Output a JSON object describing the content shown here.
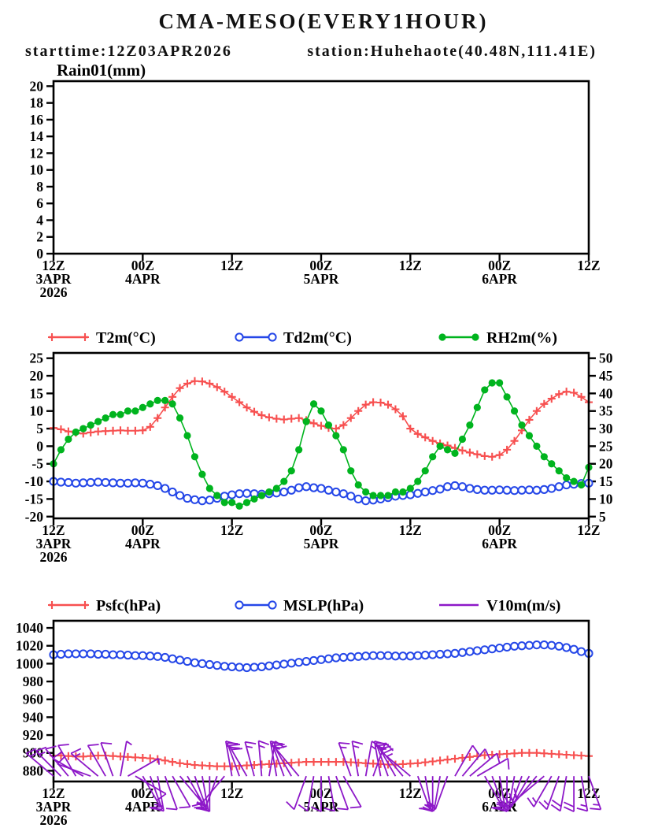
{
  "header": {
    "title": "CMA-MESO(EVERY1HOUR)",
    "subtitle_left": "starttime:12Z03APR2026",
    "subtitle_right": "station:Huhehaote(40.48N,111.41E)"
  },
  "x_axis": {
    "tick_labels": [
      "12Z",
      "00Z",
      "12Z",
      "00Z",
      "12Z",
      "00Z",
      "12Z"
    ],
    "date_rows": [
      [
        "3APR",
        "2026"
      ],
      [
        "4APR"
      ],
      [],
      [
        "5APR"
      ],
      [],
      [
        "6APR"
      ],
      []
    ],
    "start": "12Z 3APR2026",
    "end": "12Z 6APR2026",
    "interval_hours": 1
  },
  "chart_data": [
    {
      "type": "bar",
      "name": "rain-panel",
      "title": "Rain01(mm)",
      "y_axis_left": {
        "lim": [
          0,
          20.6
        ],
        "ticks": [
          0,
          2,
          4,
          6,
          8,
          10,
          12,
          14,
          16,
          18,
          20
        ]
      },
      "series": [
        {
          "name": "Rain01(mm)",
          "color": "#00b41e",
          "marker": "none",
          "axis": "left",
          "draw": "bar",
          "values": [
            0,
            0,
            0,
            0,
            0,
            0,
            0,
            0,
            0,
            0,
            0,
            0,
            0,
            0,
            0,
            0,
            0,
            0,
            0,
            0,
            0,
            0,
            0,
            0,
            0,
            0,
            0,
            0,
            0,
            0,
            0,
            0,
            0,
            0,
            0,
            0,
            0,
            0,
            0,
            0,
            0,
            0,
            0,
            0,
            0,
            0,
            0,
            0,
            0,
            0,
            0,
            0,
            0,
            0,
            0,
            0,
            0,
            0,
            0,
            0,
            0,
            0,
            0,
            0,
            0,
            0,
            0,
            0,
            0,
            0,
            0,
            0,
            0
          ]
        }
      ]
    },
    {
      "type": "line",
      "name": "temperature-humidity-panel",
      "y_axis_left": {
        "lim": [
          -20.5,
          26.5
        ],
        "ticks": [
          -20,
          -15,
          -10,
          -5,
          0,
          5,
          10,
          15,
          20,
          25
        ]
      },
      "y_axis_right": {
        "lim": [
          4.5,
          51.5
        ],
        "ticks": [
          5,
          10,
          15,
          20,
          25,
          30,
          35,
          40,
          45,
          50
        ]
      },
      "series": [
        {
          "name": "T2m(°C)",
          "color": "#f75050",
          "marker": "plus",
          "axis": "left",
          "draw": "line",
          "values": [
            5.2,
            4.8,
            4.2,
            3.8,
            3.6,
            3.9,
            4.2,
            4.3,
            4.4,
            4.5,
            4.4,
            4.4,
            4.5,
            5.5,
            8,
            11,
            14,
            16.5,
            17.8,
            18.5,
            18.4,
            17.8,
            16.8,
            15.5,
            14,
            12.5,
            11,
            9.8,
            8.8,
            8.2,
            7.8,
            7.6,
            7.8,
            8,
            7.4,
            6.5,
            5.8,
            5.2,
            5,
            6,
            8,
            10,
            11.8,
            12.5,
            12.4,
            11.8,
            10.5,
            8.5,
            5,
            3.5,
            2.5,
            1.5,
            0.8,
            0.2,
            -0.5,
            -1.2,
            -1.8,
            -2.3,
            -2.8,
            -3,
            -2.5,
            -1,
            1.5,
            4.5,
            7.5,
            10,
            12,
            13.5,
            14.8,
            15.5,
            15.2,
            14,
            12.5
          ]
        },
        {
          "name": "Td2m(°C)",
          "color": "#2547e8",
          "marker": "open-circle",
          "axis": "left",
          "draw": "line",
          "values": [
            -10,
            -10.2,
            -10.3,
            -10.5,
            -10.4,
            -10.3,
            -10.2,
            -10.3,
            -10.4,
            -10.5,
            -10.5,
            -10.4,
            -10.5,
            -10.8,
            -11.2,
            -12,
            -13,
            -14,
            -14.8,
            -15.2,
            -15.5,
            -15.3,
            -14.8,
            -14.2,
            -13.8,
            -13.5,
            -13.4,
            -13.5,
            -13.6,
            -13.5,
            -13.3,
            -13,
            -12.5,
            -11.8,
            -11.5,
            -11.8,
            -12,
            -12.5,
            -13,
            -13.5,
            -14.2,
            -15,
            -15.5,
            -15.3,
            -15,
            -14.6,
            -14.2,
            -14,
            -13.8,
            -13.4,
            -13,
            -12.6,
            -12.2,
            -11.5,
            -11.2,
            -11.5,
            -12,
            -12.3,
            -12.5,
            -12.5,
            -12.4,
            -12.5,
            -12.6,
            -12.5,
            -12.4,
            -12.5,
            -12.3,
            -12,
            -11.5,
            -11,
            -10.8,
            -10.6,
            -10.5
          ]
        },
        {
          "name": "RH2m(%)",
          "color": "#00b41e",
          "marker": "dot",
          "axis": "right",
          "draw": "line",
          "values": [
            20,
            24,
            27,
            29,
            30,
            31,
            32,
            33,
            34,
            34,
            35,
            35,
            36,
            37,
            38,
            38,
            37,
            33,
            28,
            22,
            17,
            13,
            11,
            9,
            9,
            8,
            9,
            10,
            11,
            12,
            13,
            15,
            18,
            24,
            32,
            37,
            35,
            31,
            28,
            24,
            18,
            14,
            12,
            11,
            11,
            11,
            12,
            12,
            13,
            15,
            18,
            22,
            25,
            24,
            23,
            27,
            31,
            36,
            41,
            43,
            43,
            39,
            35,
            31,
            28,
            25,
            22,
            20,
            18,
            16,
            15,
            14,
            19
          ]
        }
      ]
    },
    {
      "type": "line",
      "name": "pressure-wind-panel",
      "y_axis_left": {
        "lim": [
          868,
          1048
        ],
        "ticks": [
          880,
          900,
          920,
          940,
          960,
          980,
          1000,
          1020,
          1040
        ]
      },
      "series": [
        {
          "name": "Psfc(hPa)",
          "color": "#f75050",
          "marker": "plus",
          "axis": "left",
          "draw": "line",
          "values": [
            897,
            897,
            896.5,
            896,
            896,
            896.5,
            897,
            897,
            896.5,
            896,
            895.5,
            895,
            894.5,
            894,
            893,
            891.5,
            890,
            888.5,
            887.5,
            886.5,
            886,
            885.5,
            885,
            885,
            885,
            885.5,
            886,
            886.5,
            887,
            887.5,
            888,
            888.5,
            889,
            889.5,
            890,
            890,
            890,
            890,
            890,
            890,
            889.5,
            889,
            888.5,
            888,
            887.5,
            887,
            887,
            887.5,
            888,
            888.5,
            889.5,
            890.5,
            891.5,
            892.5,
            893.5,
            894.5,
            895.5,
            896.5,
            897.5,
            898,
            898.5,
            899,
            899.5,
            900,
            900,
            900,
            899.5,
            899,
            898.5,
            898,
            897.5,
            897,
            896.5
          ]
        },
        {
          "name": "MSLP(hPa)",
          "color": "#2547e8",
          "marker": "open-circle",
          "axis": "left",
          "draw": "line",
          "values": [
            1010,
            1010.5,
            1011,
            1011,
            1011,
            1011,
            1010.5,
            1010.5,
            1010,
            1010,
            1009.5,
            1009,
            1009,
            1008.5,
            1008,
            1007,
            1005.5,
            1004,
            1002.5,
            1001,
            1000,
            999,
            998,
            997,
            996.5,
            996,
            995.5,
            996,
            996.5,
            997.5,
            998.5,
            999.5,
            1000.5,
            1001.5,
            1002.5,
            1003.5,
            1004.5,
            1005.5,
            1006.5,
            1007,
            1007.5,
            1008,
            1008.5,
            1009,
            1009,
            1009,
            1008.5,
            1008.5,
            1008.5,
            1009,
            1009.5,
            1010,
            1010.5,
            1011,
            1011.5,
            1012.5,
            1013.5,
            1014.5,
            1015.5,
            1016.5,
            1017.5,
            1018.5,
            1019.5,
            1020,
            1020.5,
            1021,
            1021,
            1020.5,
            1019.5,
            1018,
            1016,
            1013.5,
            1011.5
          ]
        }
      ],
      "wind": {
        "name": "V10m(m/s)",
        "color": "#8d18c8",
        "anchor": 874,
        "unit": "m/s",
        "speeds": [
          6,
          6,
          5,
          4,
          4,
          5,
          6,
          5,
          4,
          3,
          3,
          4,
          5,
          6,
          6,
          5,
          5,
          4,
          6,
          7,
          6,
          5,
          5,
          4,
          7,
          8,
          8,
          7,
          6,
          6,
          7,
          6,
          5,
          4,
          4,
          5,
          5,
          4,
          4,
          5,
          6,
          7,
          6,
          5,
          6,
          7,
          6,
          5,
          6,
          5,
          6,
          7,
          6,
          5,
          4,
          5,
          5,
          4,
          5,
          6,
          7,
          8,
          8,
          7,
          6,
          6,
          5,
          6,
          7,
          8,
          8,
          7,
          6
        ],
        "dirs_deg": [
          310,
          315,
          320,
          330,
          300,
          290,
          310,
          330,
          340,
          10,
          60,
          120,
          150,
          160,
          170,
          160,
          150,
          140,
          150,
          160,
          170,
          180,
          200,
          220,
          350,
          340,
          330,
          345,
          355,
          10,
          350,
          340,
          330,
          320,
          200,
          190,
          180,
          170,
          160,
          150,
          340,
          350,
          10,
          20,
          350,
          340,
          330,
          320,
          310,
          160,
          170,
          180,
          190,
          200,
          30,
          40,
          50,
          60,
          150,
          160,
          170,
          180,
          190,
          200,
          210,
          220,
          230,
          210,
          200,
          190,
          180,
          170,
          160
        ]
      }
    }
  ]
}
